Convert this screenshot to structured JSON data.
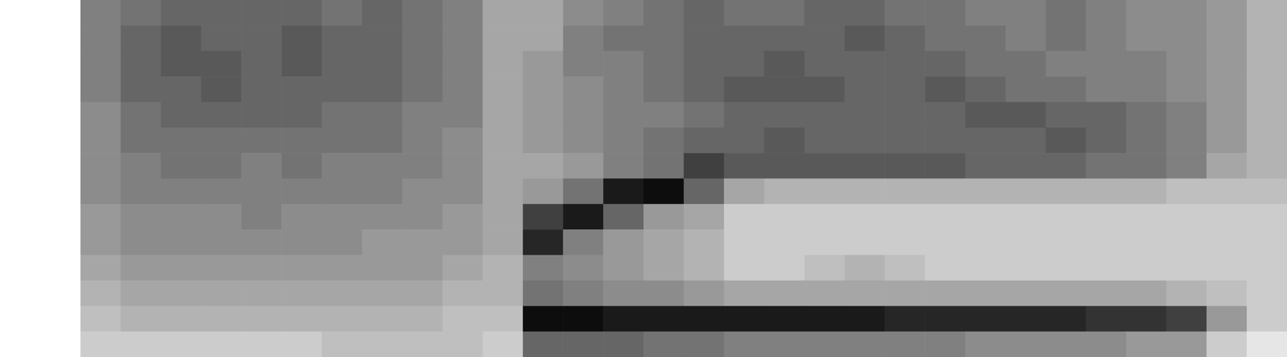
{
  "chart_data": {
    "type": "heatmap",
    "color": "#000000",
    "tick_labels": false,
    "cells": [
      [
        0,
        0,
        0.5,
        0.55,
        0.6,
        0.6,
        0.6,
        0.6,
        0.55,
        0.6,
        0.55,
        0.5,
        0.35,
        0.35,
        0.45,
        0.5,
        0.55,
        0.6,
        0.55,
        0.55,
        0.6,
        0.6,
        0.55,
        0.55,
        0.5,
        0.5,
        0.55,
        0.5,
        0.45,
        0.45,
        0.4,
        0.3
      ],
      [
        0,
        0,
        0.5,
        0.6,
        0.65,
        0.6,
        0.6,
        0.65,
        0.6,
        0.6,
        0.55,
        0.5,
        0.35,
        0.35,
        0.5,
        0.55,
        0.55,
        0.6,
        0.6,
        0.6,
        0.6,
        0.65,
        0.6,
        0.55,
        0.55,
        0.5,
        0.55,
        0.5,
        0.45,
        0.45,
        0.4,
        0.3
      ],
      [
        0,
        0,
        0.5,
        0.6,
        0.65,
        0.65,
        0.6,
        0.65,
        0.6,
        0.6,
        0.55,
        0.5,
        0.35,
        0.4,
        0.5,
        0.5,
        0.55,
        0.6,
        0.6,
        0.65,
        0.6,
        0.6,
        0.6,
        0.6,
        0.55,
        0.55,
        0.5,
        0.5,
        0.5,
        0.45,
        0.4,
        0.3
      ],
      [
        0,
        0,
        0.5,
        0.6,
        0.6,
        0.65,
        0.6,
        0.6,
        0.6,
        0.6,
        0.55,
        0.5,
        0.35,
        0.4,
        0.45,
        0.5,
        0.55,
        0.6,
        0.65,
        0.65,
        0.65,
        0.6,
        0.6,
        0.65,
        0.6,
        0.55,
        0.55,
        0.5,
        0.5,
        0.45,
        0.4,
        0.3
      ],
      [
        0,
        0,
        0.45,
        0.55,
        0.6,
        0.6,
        0.6,
        0.6,
        0.55,
        0.55,
        0.5,
        0.5,
        0.35,
        0.4,
        0.45,
        0.5,
        0.5,
        0.55,
        0.6,
        0.6,
        0.6,
        0.6,
        0.6,
        0.6,
        0.65,
        0.65,
        0.6,
        0.6,
        0.55,
        0.5,
        0.4,
        0.3
      ],
      [
        0,
        0,
        0.45,
        0.55,
        0.55,
        0.55,
        0.55,
        0.55,
        0.55,
        0.55,
        0.5,
        0.45,
        0.35,
        0.4,
        0.45,
        0.5,
        0.55,
        0.6,
        0.6,
        0.65,
        0.6,
        0.6,
        0.6,
        0.6,
        0.6,
        0.6,
        0.65,
        0.6,
        0.55,
        0.5,
        0.4,
        0.3
      ],
      [
        0,
        0,
        0.45,
        0.5,
        0.55,
        0.55,
        0.5,
        0.55,
        0.5,
        0.5,
        0.5,
        0.45,
        0.35,
        0.35,
        0.4,
        0.5,
        0.55,
        0.75,
        0.65,
        0.65,
        0.65,
        0.65,
        0.65,
        0.65,
        0.6,
        0.6,
        0.6,
        0.55,
        0.55,
        0.5,
        0.35,
        0.3
      ],
      [
        0,
        0,
        0.45,
        0.5,
        0.5,
        0.5,
        0.5,
        0.5,
        0.5,
        0.5,
        0.45,
        0.45,
        0.35,
        0.4,
        0.55,
        0.9,
        0.95,
        0.6,
        0.35,
        0.3,
        0.3,
        0.3,
        0.3,
        0.3,
        0.3,
        0.3,
        0.3,
        0.3,
        0.3,
        0.25,
        0.25,
        0.25
      ],
      [
        0,
        0,
        0.4,
        0.45,
        0.45,
        0.45,
        0.5,
        0.45,
        0.45,
        0.45,
        0.45,
        0.4,
        0.35,
        0.75,
        0.9,
        0.6,
        0.4,
        0.35,
        0.2,
        0.2,
        0.2,
        0.2,
        0.2,
        0.2,
        0.2,
        0.2,
        0.2,
        0.2,
        0.2,
        0.2,
        0.2,
        0.2
      ],
      [
        0,
        0,
        0.4,
        0.45,
        0.45,
        0.45,
        0.45,
        0.45,
        0.45,
        0.4,
        0.4,
        0.4,
        0.35,
        0.85,
        0.5,
        0.4,
        0.35,
        0.3,
        0.2,
        0.2,
        0.2,
        0.2,
        0.2,
        0.2,
        0.2,
        0.2,
        0.2,
        0.2,
        0.2,
        0.2,
        0.2,
        0.2
      ],
      [
        0,
        0,
        0.35,
        0.4,
        0.4,
        0.4,
        0.4,
        0.4,
        0.4,
        0.4,
        0.4,
        0.35,
        0.3,
        0.5,
        0.45,
        0.4,
        0.35,
        0.3,
        0.2,
        0.2,
        0.25,
        0.3,
        0.25,
        0.2,
        0.2,
        0.2,
        0.2,
        0.2,
        0.2,
        0.2,
        0.2,
        0.2
      ],
      [
        0,
        0,
        0.3,
        0.35,
        0.35,
        0.35,
        0.35,
        0.35,
        0.35,
        0.35,
        0.35,
        0.3,
        0.3,
        0.55,
        0.5,
        0.45,
        0.45,
        0.4,
        0.35,
        0.35,
        0.35,
        0.35,
        0.35,
        0.35,
        0.35,
        0.35,
        0.35,
        0.35,
        0.35,
        0.3,
        0.25,
        0.2
      ],
      [
        0,
        0,
        0.25,
        0.3,
        0.3,
        0.3,
        0.3,
        0.3,
        0.3,
        0.3,
        0.3,
        0.25,
        0.25,
        0.95,
        0.95,
        0.9,
        0.9,
        0.9,
        0.9,
        0.9,
        0.9,
        0.9,
        0.85,
        0.85,
        0.85,
        0.85,
        0.85,
        0.8,
        0.8,
        0.75,
        0.4,
        0.2
      ],
      [
        0,
        0,
        0.2,
        0.2,
        0.2,
        0.2,
        0.2,
        0.2,
        0.25,
        0.25,
        0.25,
        0.25,
        0.2,
        0.6,
        0.6,
        0.6,
        0.55,
        0.55,
        0.5,
        0.5,
        0.5,
        0.5,
        0.5,
        0.5,
        0.45,
        0.45,
        0.45,
        0.45,
        0.4,
        0.4,
        0.2,
        0.1
      ]
    ]
  }
}
